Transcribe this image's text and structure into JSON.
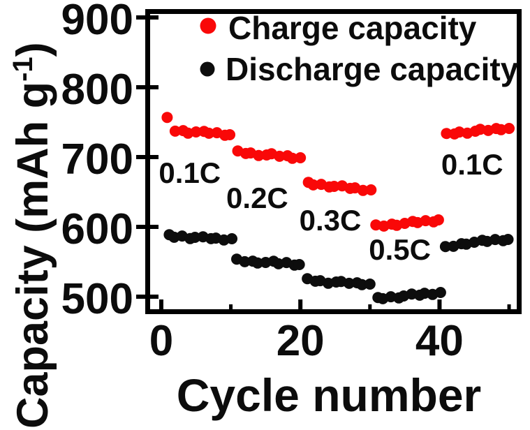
{
  "figure": {
    "xlabel": "Cycle number",
    "ylabel_prefix": "Capacity (mAh g",
    "ylabel_sup": "-1",
    "ylabel_suffix": ")",
    "background_color": "#ffffff",
    "frame_color": "#000000"
  },
  "legend": {
    "position": "upper-left-inside",
    "items": [
      {
        "label": "Charge capacity",
        "marker": "red-dot-icon",
        "color": "#f90808"
      },
      {
        "label": "Discharge capacity",
        "marker": "black-dot-icon",
        "color": "#0d0d0d"
      }
    ]
  },
  "chart_data": {
    "type": "scatter",
    "title": "",
    "xlabel": "Cycle number",
    "ylabel": "Capacity (mAh g-1)",
    "xlim": [
      -1.6,
      51.1
    ],
    "ylim": [
      482,
      905
    ],
    "x_ticks_major": [
      0,
      20,
      40
    ],
    "x_ticks_minor": [
      10,
      30,
      50
    ],
    "y_ticks_major": [
      900,
      800,
      700,
      600,
      500
    ],
    "grid": false,
    "marker": "circle",
    "rate_annotations": [
      {
        "label": "0.1C",
        "x": 4.1,
        "y": 678
      },
      {
        "label": "0.2C",
        "x": 13.8,
        "y": 642
      },
      {
        "label": "0.3C",
        "x": 24.3,
        "y": 610
      },
      {
        "label": "0.5C",
        "x": 34.3,
        "y": 568
      },
      {
        "label": "0.1C",
        "x": 44.7,
        "y": 690
      }
    ],
    "series": [
      {
        "name": "Charge capacity",
        "color": "#f90808",
        "x": [
          1,
          2,
          3,
          4,
          5,
          6,
          7,
          8,
          9,
          10,
          11,
          12,
          13,
          14,
          15,
          16,
          17,
          18,
          19,
          20,
          21,
          22,
          23,
          24,
          25,
          26,
          27,
          28,
          29,
          30,
          31,
          32,
          33,
          34,
          35,
          36,
          37,
          38,
          39,
          40,
          41,
          42,
          43,
          44,
          45,
          46,
          47,
          48,
          49,
          50
        ],
        "y": [
          755,
          738,
          737,
          736,
          736,
          735,
          735,
          734,
          733,
          732,
          707,
          706,
          705,
          704,
          703,
          703,
          702,
          701,
          700,
          699,
          662,
          661,
          660,
          659,
          658,
          657,
          656,
          655,
          654,
          653,
          601,
          602,
          603,
          604,
          605,
          606,
          607,
          608,
          609,
          610,
          732,
          734,
          735,
          736,
          737,
          738,
          739,
          740,
          741,
          741
        ]
      },
      {
        "name": "Discharge capacity",
        "color": "#0d0d0d",
        "x": [
          1,
          2,
          3,
          4,
          5,
          6,
          7,
          8,
          9,
          10,
          11,
          12,
          13,
          14,
          15,
          16,
          17,
          18,
          19,
          20,
          21,
          22,
          23,
          24,
          25,
          26,
          27,
          28,
          29,
          30,
          31,
          32,
          33,
          34,
          35,
          36,
          37,
          38,
          39,
          40,
          41,
          42,
          43,
          44,
          45,
          46,
          47,
          48,
          49,
          50
        ],
        "y": [
          587,
          586,
          586,
          585,
          585,
          584,
          584,
          583,
          583,
          583,
          552,
          551,
          550,
          550,
          549,
          549,
          548,
          548,
          547,
          546,
          524,
          523,
          522,
          521,
          521,
          520,
          520,
          519,
          519,
          518,
          497,
          498,
          499,
          500,
          501,
          502,
          503,
          504,
          505,
          506,
          570,
          573,
          575,
          577,
          578,
          579,
          580,
          581,
          582,
          582
        ]
      }
    ]
  }
}
